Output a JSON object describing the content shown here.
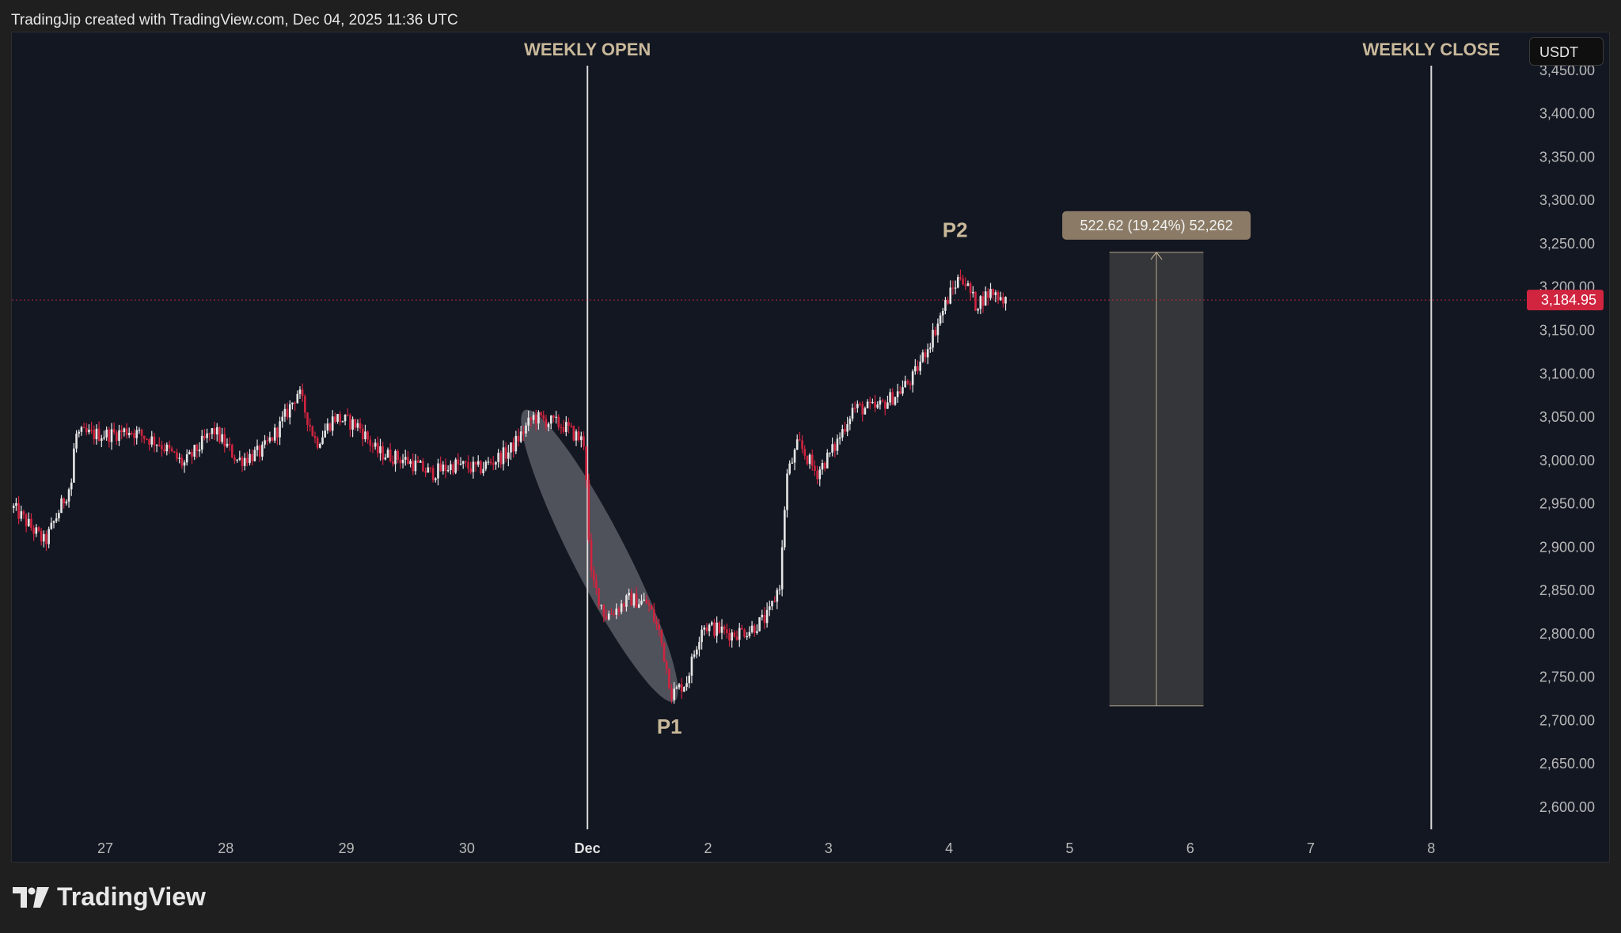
{
  "header": {
    "credit": "TradingJip created with TradingView.com, Dec 04, 2025 11:36 UTC"
  },
  "currency": "USDT",
  "brand": {
    "name": "TradingView",
    "logo": "tradingview-logo-icon"
  },
  "colors": {
    "background": "#131722",
    "candle_up": "#e6e6e6",
    "candle_down": "#d0243f",
    "annotation_text": "#c9b99a",
    "vertical_line": "#d9d9d9",
    "price_label_bg": "#d0243f",
    "measure_box": "#3a3a3c",
    "measure_label_bg": "#8b7b66",
    "ellipse_fill": "#9a9aa2"
  },
  "chart_data": {
    "type": "candlestick",
    "title": "",
    "ylim": [
      2575,
      3465
    ],
    "y_ticks": [
      "2,600.00",
      "2,650.00",
      "2,700.00",
      "2,750.00",
      "2,800.00",
      "2,850.00",
      "2,900.00",
      "2,950.00",
      "3,000.00",
      "3,050.00",
      "3,100.00",
      "3,150.00",
      "3,200.00",
      "3,250.00",
      "3,300.00",
      "3,350.00",
      "3,400.00",
      "3,450.00"
    ],
    "x_ticks": [
      {
        "label": "27",
        "day": 0
      },
      {
        "label": "28",
        "day": 1
      },
      {
        "label": "29",
        "day": 2
      },
      {
        "label": "30",
        "day": 3
      },
      {
        "label": "Dec",
        "day": 4
      },
      {
        "label": "2",
        "day": 5
      },
      {
        "label": "3",
        "day": 6
      },
      {
        "label": "4",
        "day": 7
      },
      {
        "label": "5",
        "day": 8
      },
      {
        "label": "6",
        "day": 9
      },
      {
        "label": "7",
        "day": 10
      },
      {
        "label": "8",
        "day": 11
      }
    ],
    "last_price": 3184.95,
    "last_price_label": "3,184.95",
    "anchors": [
      {
        "day": -0.76,
        "price": 2945
      },
      {
        "day": -0.5,
        "price": 2905
      },
      {
        "day": -0.28,
        "price": 2975
      },
      {
        "day": -0.25,
        "price": 3030
      },
      {
        "day": 0.05,
        "price": 3030
      },
      {
        "day": 0.2,
        "price": 3035
      },
      {
        "day": 0.45,
        "price": 3020
      },
      {
        "day": 0.65,
        "price": 2995
      },
      {
        "day": 0.9,
        "price": 3035
      },
      {
        "day": 1.1,
        "price": 3000
      },
      {
        "day": 1.3,
        "price": 3010
      },
      {
        "day": 1.45,
        "price": 3040
      },
      {
        "day": 1.6,
        "price": 3080
      },
      {
        "day": 1.75,
        "price": 3020
      },
      {
        "day": 1.9,
        "price": 3050
      },
      {
        "day": 2.1,
        "price": 3040
      },
      {
        "day": 2.25,
        "price": 3010
      },
      {
        "day": 2.5,
        "price": 3000
      },
      {
        "day": 2.7,
        "price": 2985
      },
      {
        "day": 2.9,
        "price": 2995
      },
      {
        "day": 3.1,
        "price": 2990
      },
      {
        "day": 3.35,
        "price": 3010
      },
      {
        "day": 3.55,
        "price": 3050
      },
      {
        "day": 3.8,
        "price": 3040
      },
      {
        "day": 3.98,
        "price": 3020
      },
      {
        "day": 4.02,
        "price": 2870
      },
      {
        "day": 4.15,
        "price": 2820
      },
      {
        "day": 4.35,
        "price": 2840
      },
      {
        "day": 4.5,
        "price": 2835
      },
      {
        "day": 4.6,
        "price": 2800
      },
      {
        "day": 4.7,
        "price": 2730
      },
      {
        "day": 4.82,
        "price": 2745
      },
      {
        "day": 4.95,
        "price": 2810
      },
      {
        "day": 5.2,
        "price": 2800
      },
      {
        "day": 5.35,
        "price": 2805
      },
      {
        "day": 5.5,
        "price": 2820
      },
      {
        "day": 5.6,
        "price": 2860
      },
      {
        "day": 5.65,
        "price": 2980
      },
      {
        "day": 5.75,
        "price": 3020
      },
      {
        "day": 5.9,
        "price": 2985
      },
      {
        "day": 6.05,
        "price": 3015
      },
      {
        "day": 6.2,
        "price": 3060
      },
      {
        "day": 6.4,
        "price": 3060
      },
      {
        "day": 6.55,
        "price": 3075
      },
      {
        "day": 6.7,
        "price": 3095
      },
      {
        "day": 6.85,
        "price": 3140
      },
      {
        "day": 7.0,
        "price": 3190
      },
      {
        "day": 7.1,
        "price": 3215
      },
      {
        "day": 7.22,
        "price": 3180
      },
      {
        "day": 7.35,
        "price": 3195
      },
      {
        "day": 7.48,
        "price": 3185
      }
    ],
    "vertical_lines": [
      {
        "day": 4.0,
        "label": "WEEKLY OPEN"
      },
      {
        "day": 11.0,
        "label": "WEEKLY CLOSE"
      }
    ],
    "point_labels": [
      {
        "label": "P1",
        "day": 4.68,
        "price": 2692
      },
      {
        "label": "P2",
        "day": 7.05,
        "price": 3265
      }
    ],
    "highlight": {
      "from": {
        "day": 3.48,
        "price": 3058
      },
      "to": {
        "day": 4.72,
        "price": 2722
      }
    },
    "measure": {
      "label": "522.62 (19.24%) 52,262",
      "day_start": 8.33,
      "day_end": 9.11,
      "price_low": 2717,
      "price_high": 3240
    }
  }
}
